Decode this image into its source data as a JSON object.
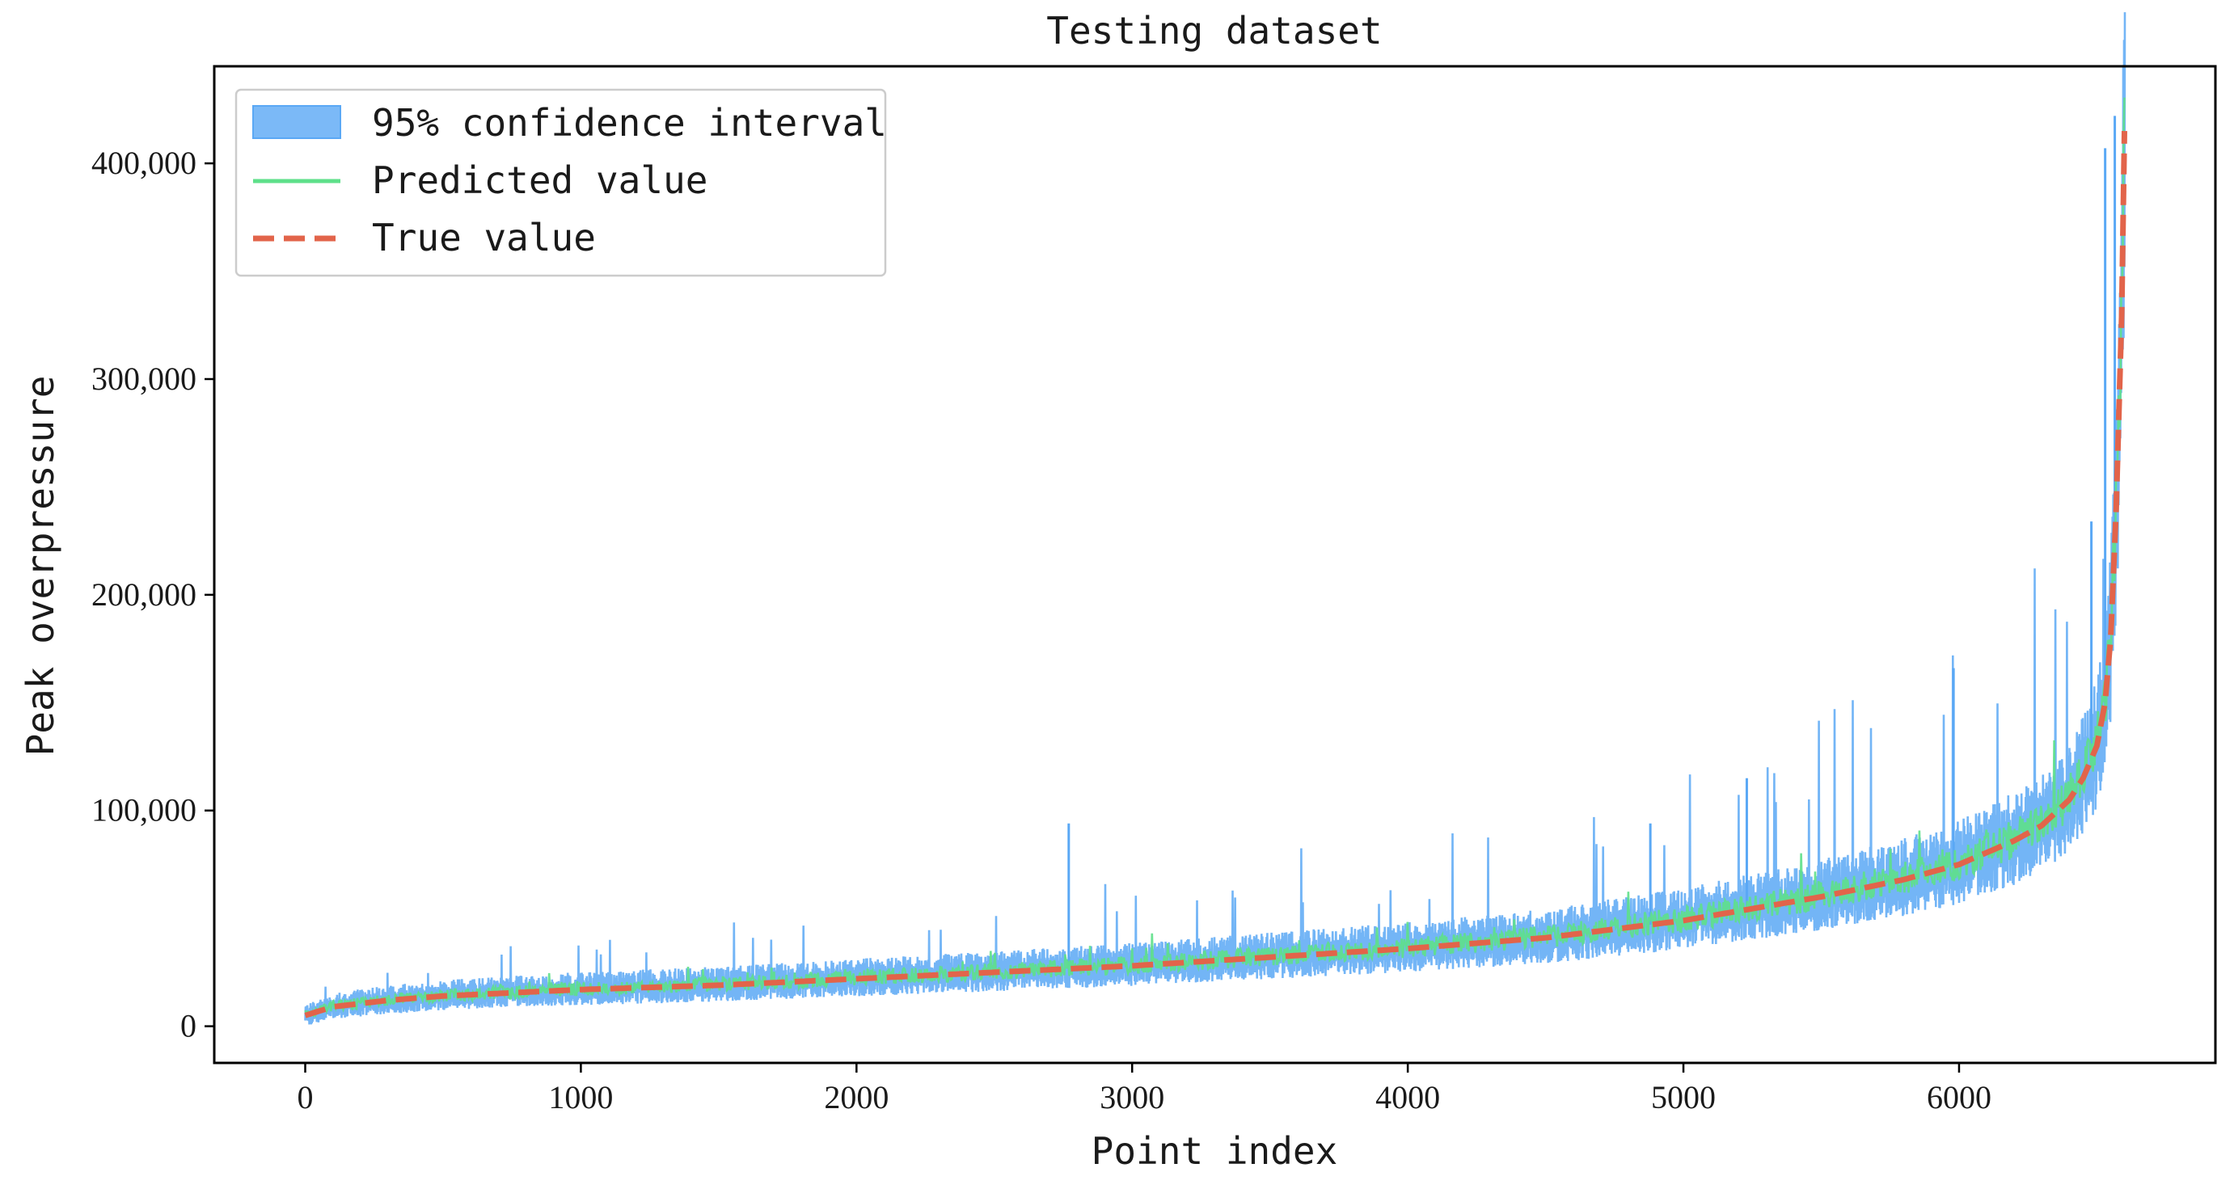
{
  "chart_data": {
    "type": "line",
    "title": "Testing dataset",
    "xlabel": "Point index",
    "ylabel": "Peak overpressure",
    "xlim": [
      -330,
      6930
    ],
    "ylim": [
      -17000,
      445000
    ],
    "x_ticks": [
      0,
      1000,
      2000,
      3000,
      4000,
      5000,
      6000
    ],
    "x_tick_labels": [
      "0",
      "1000",
      "2000",
      "3000",
      "4000",
      "5000",
      "6000"
    ],
    "y_ticks": [
      0,
      100000,
      200000,
      300000,
      400000
    ],
    "y_tick_labels": [
      "0",
      "100,000",
      "200,000",
      "300,000",
      "400,000"
    ],
    "grid": false,
    "legend_position": "top-left",
    "n_points": 6600,
    "series": [
      {
        "name": "95% confidence interval",
        "kind": "band",
        "color": "#5aa8f5"
      },
      {
        "name": "Predicted value",
        "kind": "line",
        "color": "#5ee08a"
      },
      {
        "name": "True value",
        "kind": "line",
        "style": "dashed",
        "color": "#e2644a",
        "x": [
          0,
          100,
          300,
          500,
          1000,
          1500,
          2000,
          2500,
          3000,
          3500,
          4000,
          4500,
          5000,
          5500,
          5800,
          6000,
          6200,
          6300,
          6400,
          6450,
          6500,
          6530,
          6550,
          6570,
          6590,
          6600
        ],
        "y": [
          5000,
          9000,
          12000,
          14000,
          17000,
          19000,
          22000,
          25000,
          28000,
          32000,
          36000,
          41000,
          49000,
          60000,
          68000,
          75000,
          86000,
          93000,
          105000,
          115000,
          130000,
          150000,
          180000,
          240000,
          330000,
          415000
        ]
      }
    ],
    "spikes": [
      {
        "x": 2770,
        "y": 94000
      },
      {
        "x": 5980,
        "y": 166000
      },
      {
        "x": 6530,
        "y": 407000
      },
      {
        "x": 6565,
        "y": 422000
      },
      {
        "x": 6480,
        "y": 234000
      },
      {
        "x": 5230,
        "y": 115000
      },
      {
        "x": 4880,
        "y": 94000
      }
    ]
  }
}
